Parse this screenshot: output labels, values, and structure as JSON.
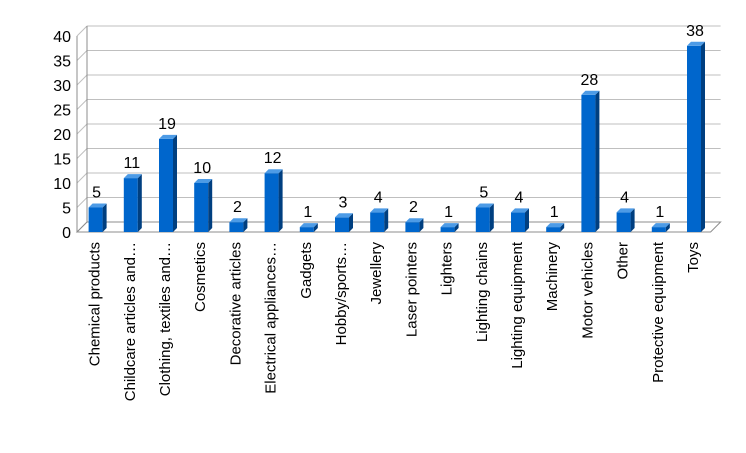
{
  "chart_data": {
    "type": "bar",
    "title": "",
    "xlabel": "",
    "ylabel": "",
    "ylim": [
      0,
      40
    ],
    "yticks": [
      0,
      5,
      10,
      15,
      20,
      25,
      30,
      35,
      40
    ],
    "grid": true,
    "legend": "none",
    "three_d": true,
    "colors": {
      "bar_front": "#0066cc",
      "bar_side": "#003f80",
      "bar_top": "#4d9be6",
      "grid": "#bfbfbf",
      "axis": "#8c8c8c"
    },
    "categories": [
      "Chemical products",
      "Childcare articles and…",
      "Clothing, textiles and…",
      "Cosmetics",
      "Decorative articles",
      "Electrical appliances…",
      "Gadgets",
      "Hobby/sports…",
      "Jewellery",
      "Laser pointers",
      "Lighters",
      "Lighting chains",
      "Lighting equipment",
      "Machinery",
      "Motor vehicles",
      "Other",
      "Protective equipment",
      "Toys"
    ],
    "values": [
      5,
      11,
      19,
      10,
      2,
      12,
      1,
      3,
      4,
      2,
      1,
      5,
      4,
      1,
      28,
      4,
      1,
      38
    ],
    "data_labels": [
      "5",
      "11",
      "19",
      "10",
      "2",
      "12",
      "1",
      "3",
      "4",
      "2",
      "1",
      "5",
      "4",
      "1",
      "28",
      "4",
      "1",
      "38"
    ]
  }
}
